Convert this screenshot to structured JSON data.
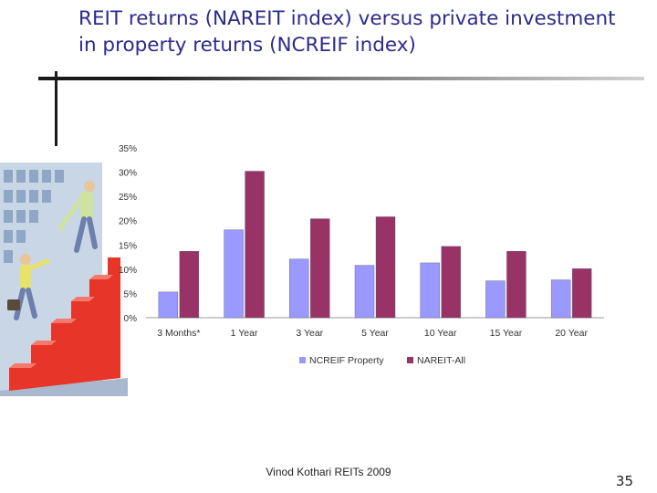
{
  "slide": {
    "title_line1": "REIT returns (NAREIT index) versus private investment",
    "title_line2": "in property returns (NCREIF index)",
    "footer": "Vinod Kothari REITs 2009",
    "page_number": "35"
  },
  "colors": {
    "title": "#2b2b8c",
    "ncreif": "#9999ff",
    "nareit": "#993366"
  },
  "illustration": {
    "icon": "business-people-climbing-stairs-icon"
  },
  "chart_data": {
    "type": "bar",
    "title": "",
    "xlabel": "",
    "ylabel": "",
    "categories": [
      "3 Months*",
      "1 Year",
      "3 Year",
      "5 Year",
      "10 Year",
      "15 Year",
      "20 Year"
    ],
    "series": [
      {
        "name": "NCREIF Property",
        "color": "#9999ff",
        "values": [
          5.3,
          18.1,
          12.1,
          10.8,
          11.3,
          7.6,
          7.8
        ]
      },
      {
        "name": "NAREIT-All",
        "color": "#993366",
        "values": [
          13.7,
          30.2,
          20.4,
          20.8,
          14.7,
          13.7,
          10.1
        ]
      }
    ],
    "ylim": [
      0,
      35
    ],
    "yticks": [
      "0%",
      "5%",
      "10%",
      "15%",
      "20%",
      "25%",
      "30%",
      "35%"
    ],
    "legend_position": "bottom"
  }
}
